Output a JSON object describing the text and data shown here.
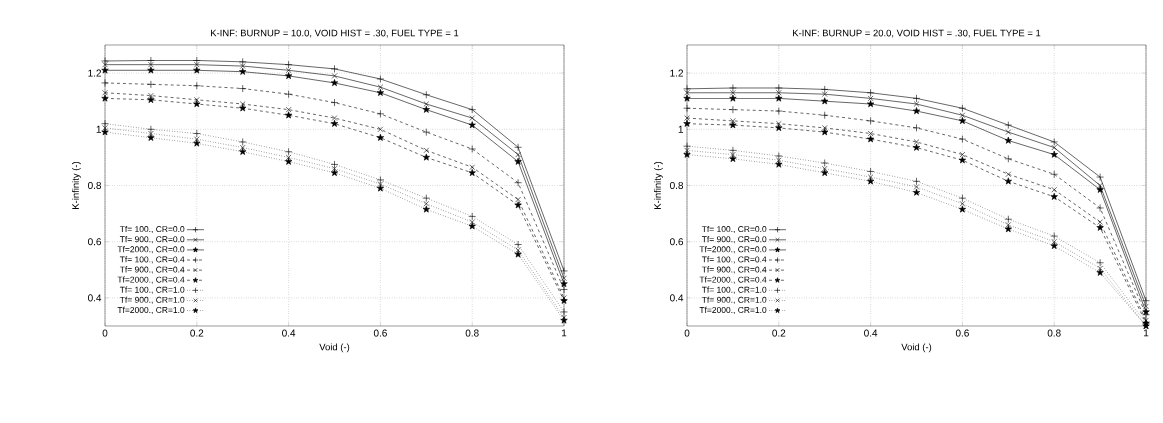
{
  "chart_data": [
    {
      "type": "line",
      "title": "K-INF: BURNUP = 10.0, VOID HIST =  .30, FUEL TYPE =  1",
      "xlabel": "Void (-)",
      "ylabel": "K-infinity (-)",
      "x": [
        0,
        0.1,
        0.2,
        0.3,
        0.4,
        0.5,
        0.6,
        0.7,
        0.8,
        0.9,
        1
      ],
      "xlim": [
        0,
        1
      ],
      "ylim": [
        0.3,
        1.3
      ],
      "xticks": [
        0,
        0.2,
        0.4,
        0.6,
        0.8,
        1
      ],
      "yticks": [
        0.4,
        0.6,
        0.8,
        1,
        1.2
      ],
      "grid": true,
      "legend": "bottom left",
      "series": [
        {
          "name": "Tf= 100., CR=0.0",
          "color": "#000000",
          "marker": "plus",
          "line_style": "solid",
          "values": [
            1.243,
            1.245,
            1.245,
            1.24,
            1.23,
            1.215,
            1.179,
            1.123,
            1.07,
            0.936,
            0.496
          ]
        },
        {
          "name": "Tf= 900., CR=0.0",
          "color": "#000000",
          "marker": "cross",
          "line_style": "solid",
          "values": [
            1.23,
            1.23,
            1.23,
            1.225,
            1.21,
            1.19,
            1.15,
            1.09,
            1.04,
            0.91,
            0.47
          ]
        },
        {
          "name": "Tf=2000., CR=0.0",
          "color": "#000000",
          "marker": "star",
          "line_style": "solid",
          "values": [
            1.21,
            1.21,
            1.21,
            1.205,
            1.19,
            1.165,
            1.13,
            1.07,
            1.015,
            0.885,
            0.45
          ]
        },
        {
          "name": "Tf= 100., CR=0.4",
          "color": "#000000",
          "marker": "plus",
          "line_style": "dashed",
          "values": [
            1.165,
            1.16,
            1.155,
            1.145,
            1.125,
            1.095,
            1.055,
            0.99,
            0.93,
            0.81,
            0.43
          ]
        },
        {
          "name": "Tf= 900., CR=0.4",
          "color": "#000000",
          "marker": "cross",
          "line_style": "dashed",
          "values": [
            1.13,
            1.12,
            1.105,
            1.09,
            1.07,
            1.04,
            1.0,
            0.925,
            0.865,
            0.75,
            0.4
          ]
        },
        {
          "name": "Tf=2000., CR=0.4",
          "color": "#000000",
          "marker": "star",
          "line_style": "dashed",
          "values": [
            1.11,
            1.105,
            1.09,
            1.075,
            1.05,
            1.02,
            0.97,
            0.9,
            0.845,
            0.73,
            0.39
          ]
        },
        {
          "name": "Tf= 100., CR=1.0",
          "color": "#000000",
          "marker": "plus",
          "line_style": "dotted",
          "values": [
            1.02,
            1.0,
            0.985,
            0.955,
            0.92,
            0.875,
            0.82,
            0.755,
            0.69,
            0.59,
            0.35
          ]
        },
        {
          "name": "Tf= 900., CR=1.0",
          "color": "#000000",
          "marker": "cross",
          "line_style": "dotted",
          "values": [
            1.005,
            0.985,
            0.965,
            0.935,
            0.9,
            0.86,
            0.805,
            0.735,
            0.67,
            0.57,
            0.33
          ]
        },
        {
          "name": "Tf=2000., CR=1.0",
          "color": "#000000",
          "marker": "star",
          "line_style": "dotted",
          "values": [
            0.99,
            0.97,
            0.95,
            0.92,
            0.885,
            0.845,
            0.79,
            0.715,
            0.655,
            0.555,
            0.32
          ]
        }
      ]
    },
    {
      "type": "line",
      "title": "K-INF: BURNUP = 20.0, VOID HIST =  .30, FUEL TYPE =  1",
      "xlabel": "Void (-)",
      "ylabel": "K-infinity (-)",
      "x": [
        0,
        0.1,
        0.2,
        0.3,
        0.4,
        0.5,
        0.6,
        0.7,
        0.8,
        0.9,
        1
      ],
      "xlim": [
        0,
        1
      ],
      "ylim": [
        0.3,
        1.3
      ],
      "xticks": [
        0,
        0.2,
        0.4,
        0.6,
        0.8,
        1
      ],
      "yticks": [
        0.4,
        0.6,
        0.8,
        1,
        1.2
      ],
      "grid": true,
      "legend": "bottom left",
      "series": [
        {
          "name": "Tf= 100., CR=0.0",
          "color": "#000000",
          "marker": "plus",
          "line_style": "solid",
          "values": [
            1.144,
            1.147,
            1.147,
            1.142,
            1.13,
            1.11,
            1.075,
            1.015,
            0.955,
            0.83,
            0.39
          ]
        },
        {
          "name": "Tf= 900., CR=0.0",
          "color": "#000000",
          "marker": "cross",
          "line_style": "solid",
          "values": [
            1.13,
            1.13,
            1.13,
            1.125,
            1.11,
            1.09,
            1.05,
            0.99,
            0.935,
            0.8,
            0.37
          ]
        },
        {
          "name": "Tf=2000., CR=0.0",
          "color": "#000000",
          "marker": "star",
          "line_style": "solid",
          "values": [
            1.11,
            1.11,
            1.11,
            1.1,
            1.09,
            1.065,
            1.03,
            0.96,
            0.91,
            0.785,
            0.35
          ]
        },
        {
          "name": "Tf= 100., CR=0.4",
          "color": "#000000",
          "marker": "plus",
          "line_style": "dashed",
          "values": [
            1.075,
            1.07,
            1.065,
            1.05,
            1.03,
            1.005,
            0.965,
            0.895,
            0.84,
            0.72,
            0.34
          ]
        },
        {
          "name": "Tf= 900., CR=0.4",
          "color": "#000000",
          "marker": "cross",
          "line_style": "dashed",
          "values": [
            1.04,
            1.03,
            1.02,
            1.005,
            0.985,
            0.955,
            0.91,
            0.84,
            0.785,
            0.67,
            0.32
          ]
        },
        {
          "name": "Tf=2000., CR=0.4",
          "color": "#000000",
          "marker": "star",
          "line_style": "dashed",
          "values": [
            1.02,
            1.015,
            1.005,
            0.99,
            0.965,
            0.935,
            0.89,
            0.815,
            0.76,
            0.65,
            0.31
          ]
        },
        {
          "name": "Tf= 100., CR=1.0",
          "color": "#000000",
          "marker": "plus",
          "line_style": "dotted",
          "values": [
            0.94,
            0.925,
            0.905,
            0.88,
            0.85,
            0.815,
            0.755,
            0.68,
            0.62,
            0.525,
            0.31
          ]
        },
        {
          "name": "Tf= 900., CR=1.0",
          "color": "#000000",
          "marker": "cross",
          "line_style": "dotted",
          "values": [
            0.925,
            0.91,
            0.89,
            0.86,
            0.83,
            0.795,
            0.735,
            0.66,
            0.6,
            0.505,
            0.3
          ]
        },
        {
          "name": "Tf=2000., CR=1.0",
          "color": "#000000",
          "marker": "star",
          "line_style": "dotted",
          "values": [
            0.91,
            0.895,
            0.875,
            0.845,
            0.815,
            0.775,
            0.715,
            0.645,
            0.585,
            0.49,
            0.3
          ]
        }
      ]
    }
  ]
}
